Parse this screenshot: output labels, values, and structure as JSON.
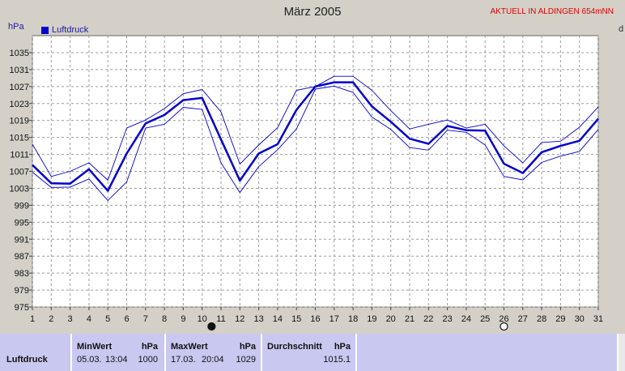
{
  "title": "März 2005",
  "header_note": "AKTUELL IN ALDINGEN 654mNN",
  "unit_label": "hPa",
  "corner_label": "d",
  "legend": {
    "label": "Luftdruck",
    "color": "#0000cc"
  },
  "chart_data": {
    "type": "line",
    "x": [
      1,
      2,
      3,
      4,
      5,
      6,
      7,
      8,
      9,
      10,
      11,
      12,
      13,
      14,
      15,
      16,
      17,
      18,
      19,
      20,
      21,
      22,
      23,
      24,
      25,
      26,
      27,
      28,
      29,
      30,
      31
    ],
    "xlim": [
      1,
      31
    ],
    "ylim": [
      975,
      1039
    ],
    "yticks": [
      975,
      979,
      983,
      987,
      991,
      995,
      999,
      1003,
      1007,
      1011,
      1015,
      1019,
      1023,
      1027,
      1031,
      1035
    ],
    "grid": true,
    "series": [
      {
        "name": "Luftdruck",
        "role": "mean",
        "color": "#0000cc",
        "values": [
          1008.5,
          1004.2,
          1004.1,
          1007.5,
          1002.4,
          1011.2,
          1018.3,
          1020.3,
          1023.8,
          1024.3,
          1014.5,
          1004.8,
          1011.2,
          1013.4,
          1021.5,
          1027.0,
          1028.0,
          1028.0,
          1022.3,
          1018.7,
          1014.7,
          1013.5,
          1017.7,
          1016.7,
          1016.6,
          1008.8,
          1006.6,
          1011.5,
          1013.0,
          1014.2,
          1019.4
        ]
      },
      {
        "role": "max",
        "color": "#0000cc",
        "values": [
          1013.4,
          1005.8,
          1007.0,
          1009.0,
          1004.9,
          1017.2,
          1019.1,
          1021.8,
          1025.3,
          1026.3,
          1021.0,
          1008.7,
          1013.2,
          1017.3,
          1026.1,
          1027.0,
          1029.4,
          1029.4,
          1026.1,
          1021.3,
          1017.0,
          1018.1,
          1019.1,
          1017.2,
          1018.1,
          1013.0,
          1009.0,
          1013.8,
          1014.1,
          1017.4,
          1022.2
        ]
      },
      {
        "role": "min",
        "color": "#0000cc",
        "values": [
          1006.8,
          1003.2,
          1003.3,
          1005.2,
          1000.1,
          1004.5,
          1017.2,
          1018.1,
          1022.1,
          1021.6,
          1009.0,
          1002.0,
          1008.1,
          1012.1,
          1017.0,
          1026.4,
          1027.1,
          1025.6,
          1019.8,
          1016.9,
          1012.6,
          1012.0,
          1016.7,
          1016.2,
          1013.2,
          1005.8,
          1005.0,
          1009.1,
          1010.6,
          1011.7,
          1016.9
        ]
      }
    ],
    "markers": [
      {
        "x": 10.5,
        "symbol": "filled-circle"
      },
      {
        "x": 26,
        "symbol": "open-circle"
      }
    ]
  },
  "summary": {
    "row_label": "Luftdruck",
    "min": {
      "header": "MinWert",
      "unit": "hPa",
      "date": "05.03.",
      "time": "13:04",
      "value": "1000"
    },
    "max": {
      "header": "MaxWert",
      "unit": "hPa",
      "date": "17.03.",
      "time": "20:04",
      "value": "1029"
    },
    "avg": {
      "header": "Durchschnitt",
      "unit": "hPa",
      "value": "1015.1"
    }
  }
}
